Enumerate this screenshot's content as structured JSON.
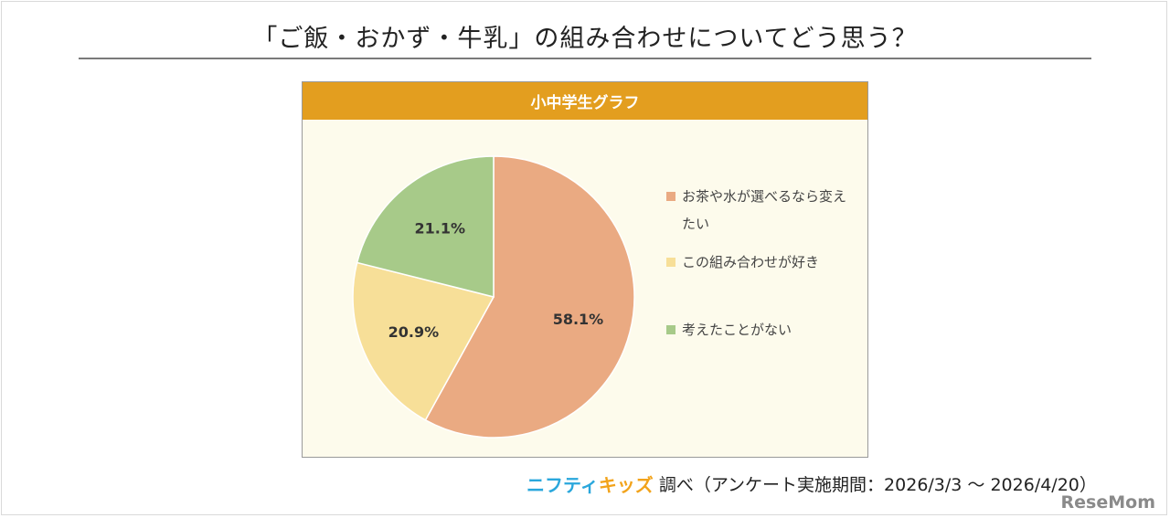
{
  "title": "「ご飯・おかず・牛乳」の組み合わせについてどう思う？",
  "panel_title": "小中学生グラフ",
  "source": {
    "logo_part1": "ニフティ",
    "logo_part2": "キッズ",
    "text": "調べ（アンケート実施期間：2026/3/3 ～ 2026/4/20）"
  },
  "watermark": "ReseMom",
  "chart_data": {
    "type": "pie",
    "title": "小中学生グラフ",
    "slices": [
      {
        "label": "お茶や水が選べるなら変えたい",
        "value": 58.1,
        "value_label": "58.1%",
        "color": "#eaaa82"
      },
      {
        "label": "この組み合わせが好き",
        "value": 20.9,
        "value_label": "20.9%",
        "color": "#f7df98"
      },
      {
        "label": "考えたことがない",
        "value": 21.1,
        "value_label": "21.1%",
        "color": "#a7ca89"
      }
    ],
    "legend": {
      "placement": "right",
      "items": [
        "お茶や水が選べるなら変えたい",
        "この組み合わせが好き",
        "考えたことがない"
      ]
    },
    "start": "12 o'clock",
    "direction": "clockwise"
  }
}
